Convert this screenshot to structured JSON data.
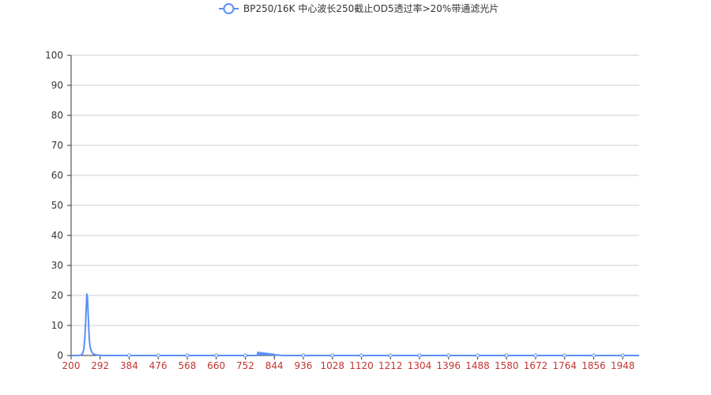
{
  "chart_data": {
    "type": "line",
    "title": "",
    "xlabel": "",
    "ylabel": "",
    "legend_placement": "top-center",
    "grid": true,
    "xlim": [
      200,
      2000
    ],
    "ylim": [
      0,
      100
    ],
    "x_ticks": [
      "200",
      "292",
      "384",
      "476",
      "568",
      "660",
      "752",
      "844",
      "936",
      "1028",
      "1120",
      "1212",
      "1304",
      "1396",
      "1488",
      "1580",
      "1672",
      "1764",
      "1856",
      "1948"
    ],
    "y_ticks": [
      "0",
      "10",
      "20",
      "30",
      "40",
      "50",
      "60",
      "70",
      "80",
      "90",
      "100"
    ],
    "colors": {
      "series": "#5b8ff9",
      "axis": "#333333",
      "x_tick_label": "#c23531",
      "grid": "#cccccc"
    },
    "series": [
      {
        "name": "BP250/16K 中心波长250截止OD5透过率>20%带通滤光片",
        "x": [
          200,
          220,
          230,
          236,
          240,
          243,
          246,
          248,
          250,
          252,
          254,
          256,
          258,
          260,
          264,
          270,
          280,
          292,
          300,
          320,
          384,
          476,
          568,
          660,
          752,
          790,
          792,
          794,
          796,
          798,
          800,
          802,
          804,
          806,
          808,
          810,
          812,
          814,
          816,
          818,
          820,
          822,
          824,
          826,
          828,
          830,
          832,
          834,
          836,
          838,
          840,
          842,
          844,
          848,
          852,
          856,
          860,
          870,
          936,
          1028,
          1120,
          1212,
          1304,
          1396,
          1488,
          1580,
          1672,
          1764,
          1856,
          1948,
          2000
        ],
        "y": [
          0,
          0,
          0.1,
          0.5,
          2,
          5,
          11,
          16,
          20.5,
          19,
          14,
          9,
          5,
          3,
          1.5,
          0.5,
          0.2,
          0.1,
          0,
          0,
          0,
          0,
          0,
          0,
          0,
          0,
          1.1,
          0.3,
          0.9,
          0.2,
          1,
          0.3,
          0.8,
          0.2,
          0.9,
          0.3,
          0.7,
          0.2,
          0.8,
          0.3,
          0.6,
          0.2,
          0.7,
          0.2,
          0.5,
          0.3,
          0.6,
          0.2,
          0.4,
          0.2,
          0.5,
          0.1,
          0.3,
          0.2,
          0.1,
          0.2,
          0.1,
          0,
          0,
          0,
          0,
          0,
          0,
          0,
          0,
          0,
          0,
          0,
          0,
          0,
          0
        ]
      }
    ]
  }
}
